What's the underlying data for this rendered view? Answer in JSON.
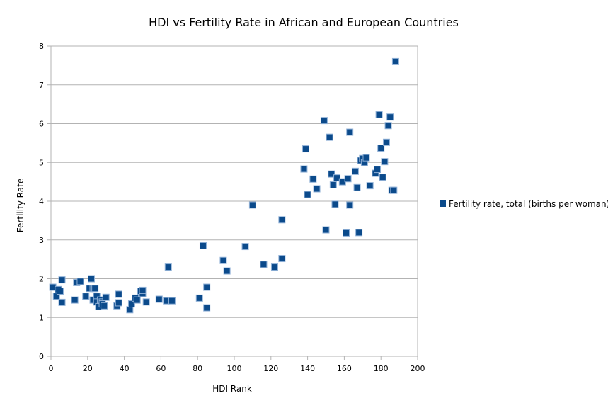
{
  "chart_data": {
    "type": "scatter",
    "title": "HDI vs Fertility Rate in African and European Countries",
    "xlabel": "HDI Rank",
    "ylabel": "Fertility Rate",
    "xlim": [
      0,
      200
    ],
    "ylim": [
      0,
      8
    ],
    "x_ticks": [
      0,
      20,
      40,
      60,
      80,
      100,
      120,
      140,
      160,
      180,
      200
    ],
    "y_ticks": [
      0,
      1,
      2,
      3,
      4,
      5,
      6,
      7,
      8
    ],
    "grid": "horizontal",
    "legend_position": "right",
    "series": [
      {
        "name": "Fertility rate, total (births per woman)",
        "color": "#0b4a8b",
        "points": [
          [
            1,
            1.78
          ],
          [
            3,
            1.55
          ],
          [
            4,
            1.72
          ],
          [
            5,
            1.68
          ],
          [
            6,
            1.97
          ],
          [
            6,
            1.39
          ],
          [
            13,
            1.45
          ],
          [
            14,
            1.9
          ],
          [
            16,
            1.93
          ],
          [
            19,
            1.55
          ],
          [
            21,
            1.75
          ],
          [
            22,
            2.0
          ],
          [
            23,
            1.45
          ],
          [
            23,
            1.75
          ],
          [
            24,
            1.75
          ],
          [
            25,
            1.55
          ],
          [
            25,
            1.4
          ],
          [
            26,
            1.28
          ],
          [
            27,
            1.45
          ],
          [
            28,
            1.4
          ],
          [
            28,
            1.35
          ],
          [
            29,
            1.3
          ],
          [
            30,
            1.52
          ],
          [
            36,
            1.3
          ],
          [
            37,
            1.38
          ],
          [
            37,
            1.6
          ],
          [
            43,
            1.2
          ],
          [
            44,
            1.35
          ],
          [
            46,
            1.5
          ],
          [
            47,
            1.45
          ],
          [
            49,
            1.68
          ],
          [
            50,
            1.62
          ],
          [
            50,
            1.7
          ],
          [
            52,
            1.4
          ],
          [
            59,
            1.47
          ],
          [
            63,
            1.43
          ],
          [
            64,
            2.3
          ],
          [
            66,
            1.43
          ],
          [
            81,
            1.5
          ],
          [
            83,
            2.85
          ],
          [
            85,
            1.78
          ],
          [
            85,
            1.25
          ],
          [
            94,
            2.47
          ],
          [
            96,
            2.2
          ],
          [
            106,
            2.83
          ],
          [
            110,
            3.9
          ],
          [
            116,
            2.37
          ],
          [
            122,
            2.3
          ],
          [
            126,
            3.52
          ],
          [
            126,
            2.52
          ],
          [
            138,
            4.83
          ],
          [
            139,
            5.35
          ],
          [
            140,
            4.17
          ],
          [
            143,
            4.57
          ],
          [
            145,
            4.32
          ],
          [
            149,
            6.08
          ],
          [
            150,
            3.26
          ],
          [
            152,
            5.65
          ],
          [
            153,
            4.7
          ],
          [
            154,
            4.42
          ],
          [
            155,
            3.92
          ],
          [
            156,
            4.6
          ],
          [
            159,
            4.5
          ],
          [
            161,
            3.18
          ],
          [
            162,
            4.58
          ],
          [
            163,
            5.78
          ],
          [
            163,
            3.9
          ],
          [
            166,
            4.77
          ],
          [
            167,
            4.35
          ],
          [
            168,
            3.19
          ],
          [
            169,
            5.05
          ],
          [
            170,
            5.1
          ],
          [
            171,
            5.0
          ],
          [
            172,
            5.12
          ],
          [
            174,
            4.4
          ],
          [
            177,
            4.72
          ],
          [
            178,
            4.82
          ],
          [
            179,
            6.23
          ],
          [
            180,
            5.37
          ],
          [
            181,
            4.62
          ],
          [
            182,
            5.02
          ],
          [
            183,
            5.52
          ],
          [
            184,
            5.95
          ],
          [
            185,
            6.17
          ],
          [
            186,
            4.28
          ],
          [
            187,
            4.28
          ],
          [
            188,
            7.6
          ]
        ]
      }
    ]
  }
}
